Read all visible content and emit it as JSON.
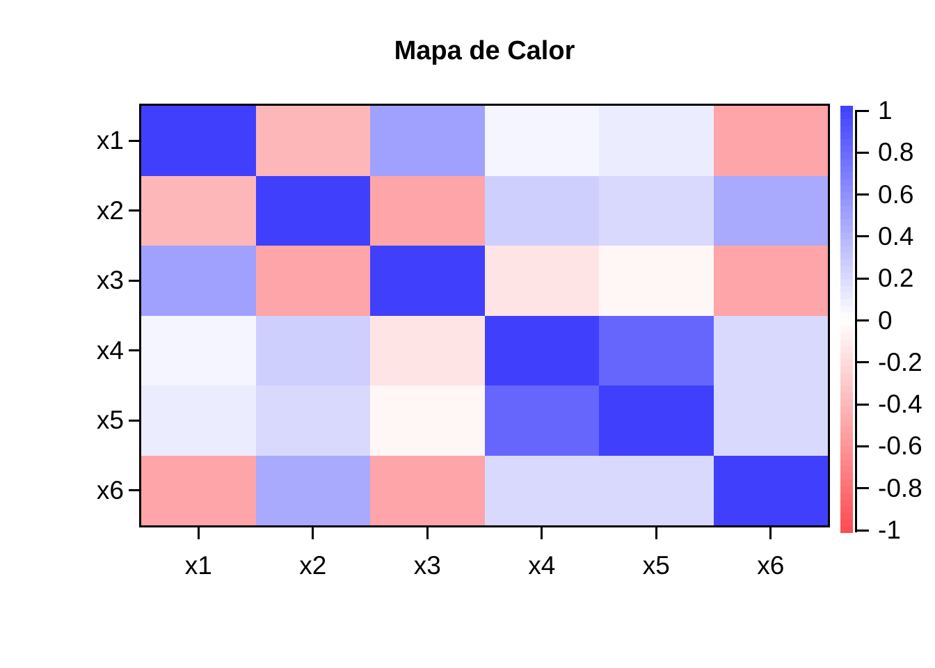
{
  "figure": {
    "background": "#FFFFFF",
    "border_color": "#000000",
    "text_color": "#000000"
  },
  "chart_data": {
    "type": "heatmap",
    "title": "Mapa de Calor",
    "x_categories": [
      "x1",
      "x2",
      "x3",
      "x4",
      "x5",
      "x6"
    ],
    "y_categories": [
      "x1",
      "x2",
      "x3",
      "x4",
      "x5",
      "x6"
    ],
    "matrix": [
      [
        1.0,
        -0.4,
        0.5,
        0.05,
        0.1,
        -0.5
      ],
      [
        -0.4,
        1.0,
        -0.5,
        0.25,
        0.2,
        0.45
      ],
      [
        0.5,
        -0.5,
        1.0,
        -0.15,
        -0.05,
        -0.5
      ],
      [
        0.05,
        0.25,
        -0.15,
        1.0,
        0.8,
        0.2
      ],
      [
        0.1,
        0.2,
        -0.05,
        0.8,
        1.0,
        0.2
      ],
      [
        -0.5,
        0.45,
        -0.5,
        0.2,
        0.2,
        1.0
      ]
    ],
    "value_range": [
      -1,
      1
    ],
    "colorbar": {
      "position": "right",
      "tick_labels": [
        "1",
        "0.8",
        "0.6",
        "0.4",
        "0.2",
        "0",
        "-0.2",
        "-0.4",
        "-0.6",
        "-0.8",
        "-1"
      ],
      "levels": 64
    },
    "colors": {
      "high": "#4040FC",
      "mid": "#FFFFFF",
      "low": "#FB4B50"
    }
  }
}
